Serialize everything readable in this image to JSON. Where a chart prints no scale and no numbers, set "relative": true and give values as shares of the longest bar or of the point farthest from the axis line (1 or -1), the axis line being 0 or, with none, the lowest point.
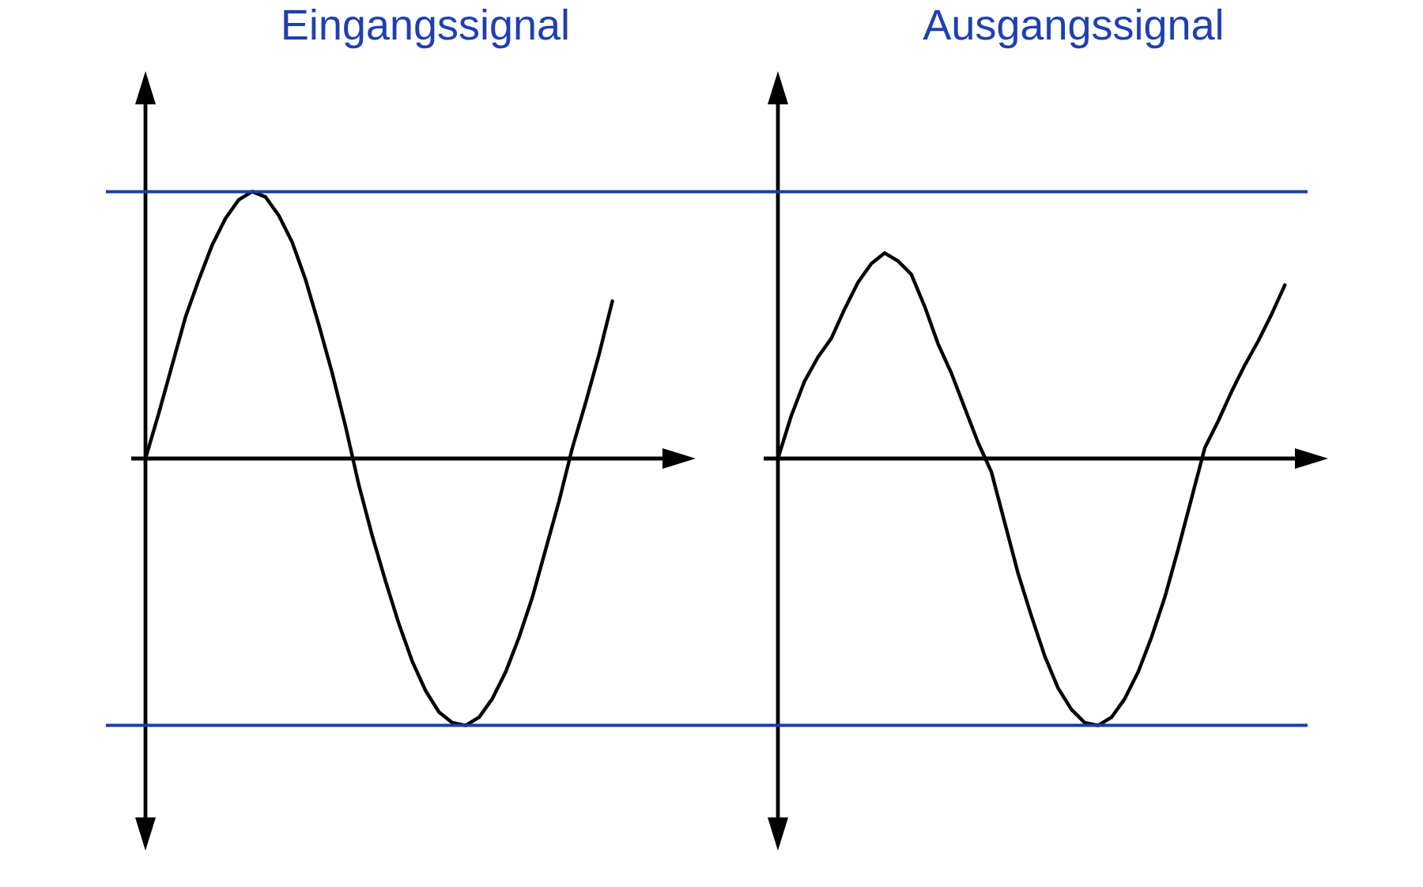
{
  "chart_data": [
    {
      "type": "line",
      "title": "Eingangssignal",
      "relative": true,
      "categories": [
        null,
        null,
        null,
        null,
        null,
        null,
        null,
        null,
        null,
        null,
        null,
        null,
        null,
        null,
        null,
        null,
        null,
        null,
        null,
        null,
        null,
        null,
        null,
        null,
        null,
        null,
        null,
        null,
        null,
        null,
        null,
        null,
        null,
        null,
        null,
        null
      ],
      "color": "#000000",
      "values": [
        0,
        0.17,
        0.35,
        0.53,
        0.67,
        0.8,
        0.9,
        0.97,
        1,
        0.98,
        0.91,
        0.81,
        0.67,
        0.5,
        0.32,
        0.12,
        -0.1,
        -0.29,
        -0.46,
        -0.62,
        -0.76,
        -0.87,
        -0.95,
        -0.99,
        -1,
        -0.97,
        -0.9,
        -0.8,
        -0.67,
        -0.52,
        -0.34,
        -0.16,
        0.04,
        0.21,
        0.39,
        0.59
      ],
      "ref_lines": [
        {
          "axis": "y",
          "value": 1,
          "color": "#1b3da8"
        },
        {
          "axis": "y",
          "value": -1,
          "color": "#1b3da8"
        }
      ]
    },
    {
      "type": "line",
      "title": "Ausgangssignal",
      "relative": true,
      "categories": [
        null,
        null,
        null,
        null,
        null,
        null,
        null,
        null,
        null,
        null,
        null,
        null,
        null,
        null,
        null,
        null,
        null,
        null,
        null,
        null,
        null,
        null,
        null,
        null,
        null,
        null,
        null,
        null,
        null,
        null,
        null,
        null,
        null,
        null,
        null,
        null,
        null,
        null,
        null
      ],
      "color": "#000000",
      "values": [
        0,
        0.16,
        0.29,
        0.38,
        0.45,
        0.56,
        0.66,
        0.73,
        0.77,
        0.74,
        0.69,
        0.57,
        0.43,
        0.32,
        0.19,
        0.06,
        -0.05,
        -0.24,
        -0.43,
        -0.59,
        -0.74,
        -0.86,
        -0.94,
        -0.99,
        -1,
        -0.97,
        -0.9,
        -0.8,
        -0.67,
        -0.52,
        -0.34,
        -0.15,
        0.04,
        0.14,
        0.25,
        0.35,
        0.44,
        0.54,
        0.65
      ],
      "ref_lines": [
        {
          "axis": "y",
          "value": 1,
          "color": "#1b3da8"
        },
        {
          "axis": "y",
          "value": -1,
          "color": "#1b3da8"
        }
      ]
    }
  ]
}
